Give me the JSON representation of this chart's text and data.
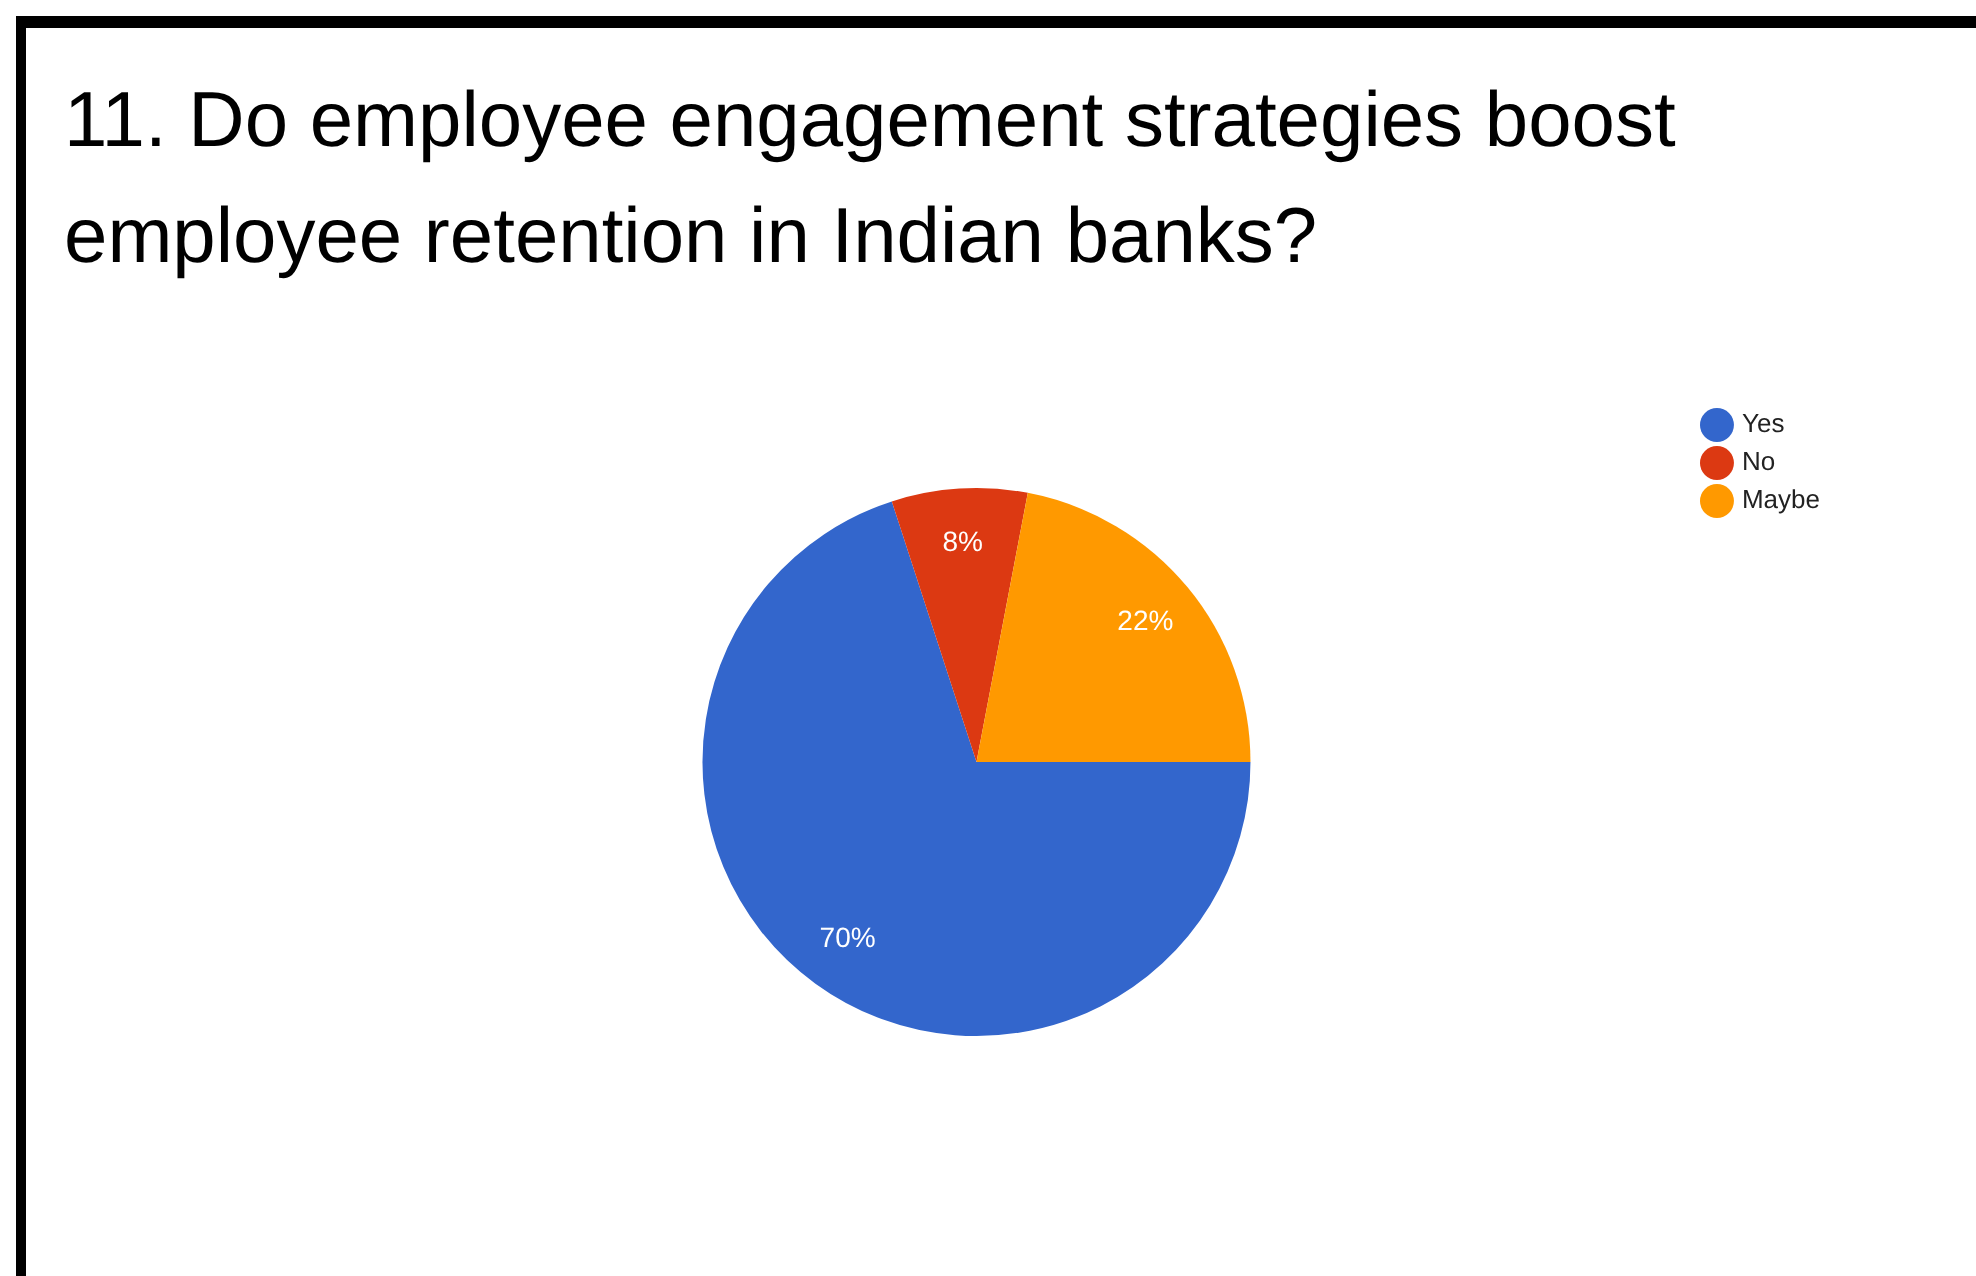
{
  "chart_data": {
    "type": "pie",
    "title": "11. Do employee engagement strategies boost employee retention in Indian banks?",
    "categories": [
      "Yes",
      "No",
      "Maybe"
    ],
    "values": [
      70,
      8,
      22
    ],
    "colors": [
      "#3366cc",
      "#dc3912",
      "#ff9900"
    ],
    "value_labels": [
      "70%",
      "8%",
      "22%"
    ],
    "legend": "top right"
  }
}
